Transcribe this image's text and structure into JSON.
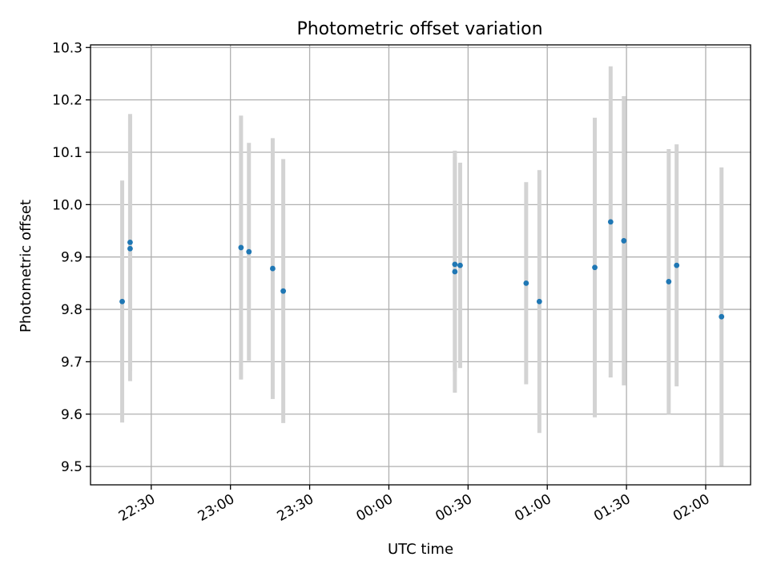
{
  "chart_data": {
    "type": "scatter",
    "title": "Photometric offset variation",
    "xlabel": "UTC time",
    "ylabel": "Photometric offset",
    "grid": true,
    "x_ticks": [
      "22:30",
      "23:00",
      "23:30",
      "00:00",
      "00:30",
      "01:00",
      "01:30",
      "02:00"
    ],
    "y_ticks": [
      "9.5",
      "9.6",
      "9.7",
      "9.8",
      "9.9",
      "10.0",
      "10.1",
      "10.2",
      "10.3"
    ],
    "xlim": [
      "22:07",
      "02:17"
    ],
    "ylim": [
      9.465,
      10.305
    ],
    "colors": {
      "points": "#1f77b4",
      "errorbars": "#d3d3d3",
      "grid": "#b0b0b0"
    },
    "series": [
      {
        "points": [
          {
            "x": "22:19",
            "y": 9.815,
            "err": 0.231
          },
          {
            "x": "22:22",
            "y": 9.928,
            "err": 0.245
          },
          {
            "x": "22:22",
            "y": 9.916,
            "err": 0.253
          },
          {
            "x": "23:04",
            "y": 9.918,
            "err": 0.252
          },
          {
            "x": "23:07",
            "y": 9.91,
            "err": 0.208
          },
          {
            "x": "23:16",
            "y": 9.878,
            "err": 0.249
          },
          {
            "x": "23:20",
            "y": 9.835,
            "err": 0.252
          },
          {
            "x": "00:25",
            "y": 9.886,
            "err": 0.205
          },
          {
            "x": "00:25",
            "y": 9.872,
            "err": 0.231
          },
          {
            "x": "00:27",
            "y": 9.884,
            "err": 0.196
          },
          {
            "x": "00:52",
            "y": 9.85,
            "err": 0.193
          },
          {
            "x": "00:57",
            "y": 9.815,
            "err": 0.251
          },
          {
            "x": "01:18",
            "y": 9.88,
            "err": 0.286
          },
          {
            "x": "01:24",
            "y": 9.967,
            "err": 0.297
          },
          {
            "x": "01:29",
            "y": 9.931,
            "err": 0.276
          },
          {
            "x": "01:46",
            "y": 9.853,
            "err": 0.253
          },
          {
            "x": "01:49",
            "y": 9.884,
            "err": 0.231
          },
          {
            "x": "02:06",
            "y": 9.786,
            "err": 0.285
          }
        ]
      }
    ]
  }
}
